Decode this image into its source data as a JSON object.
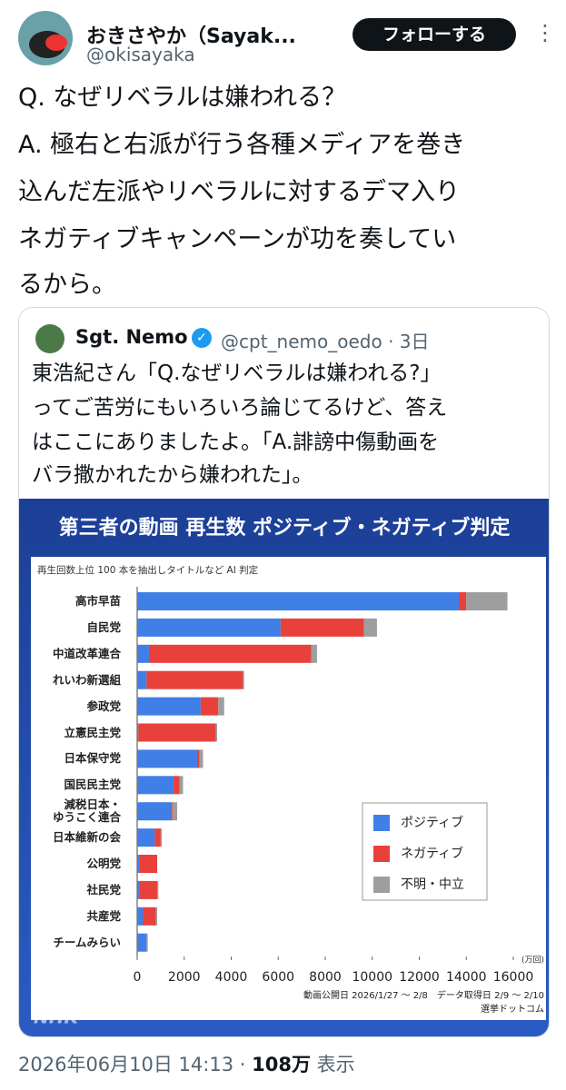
{
  "tweet": {
    "author_name": "おきさやか（Sayak...",
    "handle": "@okisayaka",
    "follow_button": "フォローする",
    "text_lines": [
      "Q. なぜリベラルは嫌われる？",
      "A. 極右と右派が行う各種メディアを巻き",
      "込んだ左派やリベラルに対するデマ入り",
      "ネガティブキャンペーンが功を奏してい",
      "るから。"
    ],
    "timestamp": "2026年06月10日 14:13 ·",
    "views": "108万",
    "views_label": "表示"
  },
  "quote": {
    "author_name": "Sgt. Nemo",
    "handle_time": "@cpt_nemo_oedo · 3日",
    "text_lines": [
      "東浩紀さん「Q.なぜリベラルは嫌われる?」",
      "ってご苦労にもいろいろ論じてるけど、答え",
      "はここにありましたよ。「A.誹謗中傷動画を",
      "バラ撒かれたから嫌われた」。"
    ]
  },
  "chart_data": {
    "type": "bar",
    "orientation": "horizontal",
    "stacked": true,
    "title": "第三者の動画 再生数 ポジティブ・ネガティブ判定",
    "subtitle": "再生回数上位 100 本を抽出しタイトルなど AI 判定",
    "unit_label": "(万回)",
    "categories": [
      "高市早苗",
      "自民党",
      "中道改革連合",
      "れいわ新選組",
      "参政党",
      "立憲民主党",
      "日本保守党",
      "国民民主党",
      "減税日本・\nゆうこく連合",
      "日本維新の会",
      "公明党",
      "社民党",
      "共産党",
      "チームみらい"
    ],
    "series": [
      {
        "name": "ポジティブ",
        "color": "#3f7fe6",
        "values": [
          13700,
          6100,
          500,
          400,
          2700,
          50,
          2550,
          1550,
          1450,
          750,
          100,
          100,
          250,
          400
        ]
      },
      {
        "name": "ネガティブ",
        "color": "#e8413b",
        "values": [
          300,
          3550,
          6900,
          4100,
          750,
          3300,
          100,
          250,
          50,
          250,
          750,
          750,
          550,
          0
        ]
      },
      {
        "name": "不明・中立",
        "color": "#9e9e9e",
        "values": [
          1750,
          550,
          250,
          50,
          250,
          50,
          150,
          150,
          200,
          50,
          0,
          50,
          50,
          50
        ]
      }
    ],
    "xlim": [
      0,
      16000
    ],
    "xticks": [
      0,
      2000,
      4000,
      6000,
      8000,
      10000,
      12000,
      14000,
      16000
    ],
    "grid": false,
    "legend_position": "lower right",
    "notes": [
      "動画公開日 2026/1/27 ～ 2/8　データ取得日 2/9 ～ 2/10",
      "選挙ドットコム"
    ],
    "watermark": "NHK"
  }
}
